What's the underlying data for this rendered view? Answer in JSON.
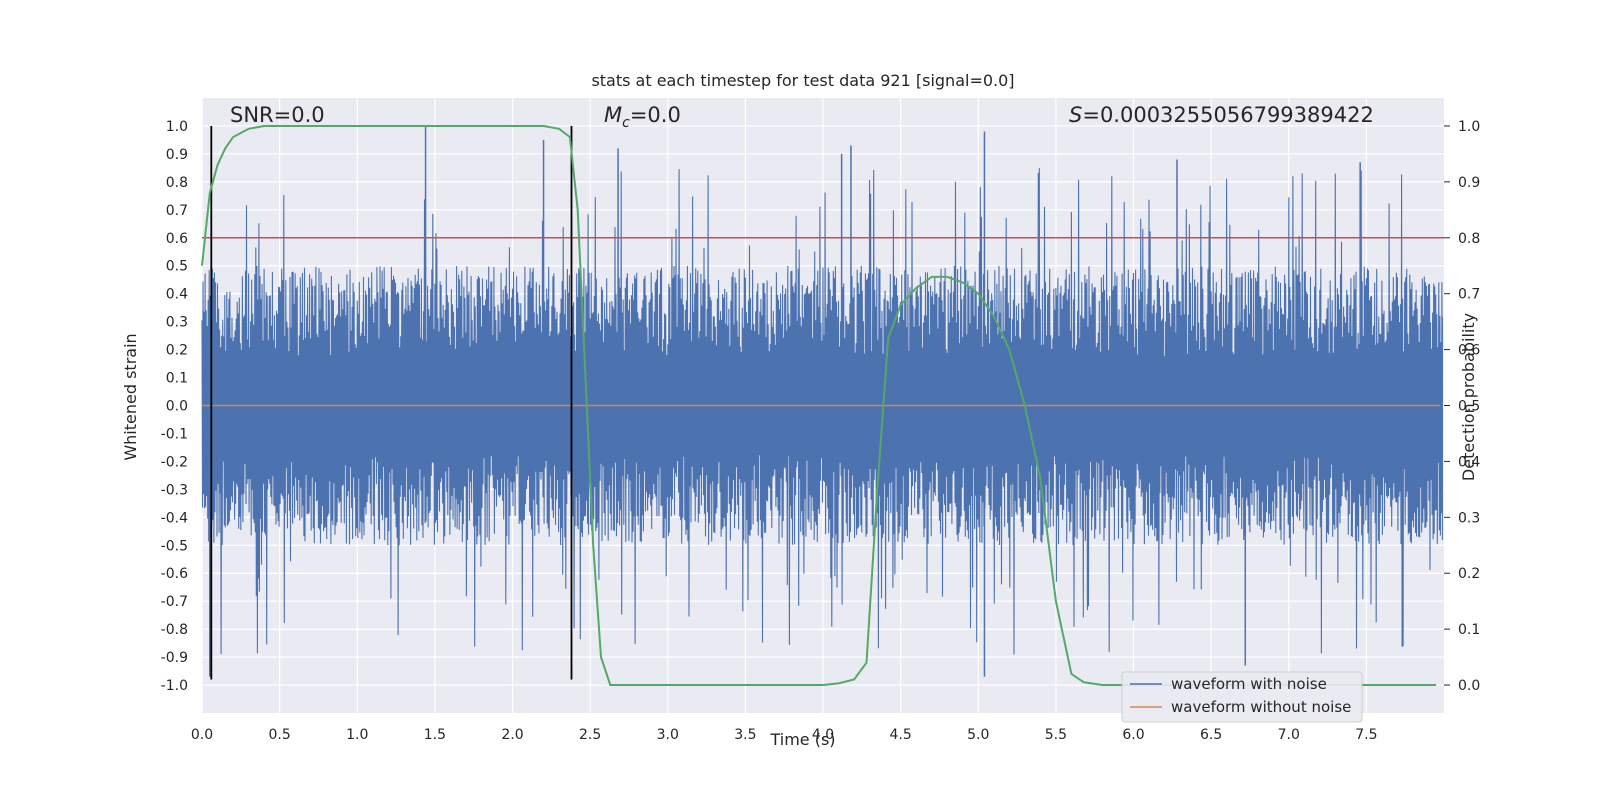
{
  "chart_data": {
    "type": "line",
    "title": "stats at each timestep for test data 921 [signal=0.0]",
    "xlabel": "Time (s)",
    "ylabel": "Whitened strain",
    "y2label": "Detection probability",
    "xlim": [
      0.0,
      8.0
    ],
    "ylim": [
      -1.1,
      1.1
    ],
    "y2lim": [
      -0.05,
      1.05
    ],
    "xticks": [
      0.0,
      0.5,
      1.0,
      1.5,
      2.0,
      2.5,
      3.0,
      3.5,
      4.0,
      4.5,
      5.0,
      5.5,
      6.0,
      6.5,
      7.0,
      7.5
    ],
    "xtick_labels": [
      "0.0",
      "0.5",
      "1.0",
      "1.5",
      "2.0",
      "2.5",
      "3.0",
      "3.5",
      "4.0",
      "4.5",
      "5.0",
      "5.5",
      "6.0",
      "6.5",
      "7.0",
      "7.5"
    ],
    "yticks": [
      1.0,
      0.9,
      0.8,
      0.7,
      0.6,
      0.5,
      0.4,
      0.3,
      0.2,
      0.1,
      0.0,
      -0.1,
      -0.2,
      -0.3,
      -0.4,
      -0.5,
      -0.6,
      -0.7,
      -0.8,
      -0.9,
      -1.0
    ],
    "ytick_labels": [
      "1.0",
      "0.9",
      "0.8",
      "0.7",
      "0.6",
      "0.5",
      "0.4",
      "0.3",
      "0.2",
      "0.1",
      "0.0",
      "-0.1",
      "-0.2",
      "-0.3",
      "-0.4",
      "-0.5",
      "-0.6",
      "-0.7",
      "-0.8",
      "-0.9",
      "-1.0"
    ],
    "y2ticks": [
      1.0,
      0.9,
      0.8,
      0.7,
      0.6,
      0.5,
      0.4,
      0.3,
      0.2,
      0.1,
      0.0
    ],
    "y2tick_labels": [
      "1.0",
      "0.9",
      "0.8",
      "0.7",
      "0.6",
      "0.5",
      "0.4",
      "0.3",
      "0.2",
      "0.1",
      "0.0"
    ],
    "grid": true,
    "legend_position": "bottom-right",
    "series": [
      {
        "name": "waveform with noise",
        "axis": "left",
        "color": "#4c72b0",
        "style": "dense noise, envelope approx",
        "duration_s": 8.0,
        "envelope_upper": 0.5,
        "envelope_lower": -0.5,
        "peaks": [
          {
            "x": 1.44,
            "y": 1.0
          },
          {
            "x": 2.2,
            "y": 0.95
          },
          {
            "x": 2.68,
            "y": 0.92
          },
          {
            "x": 4.18,
            "y": 0.93
          },
          {
            "x": 4.12,
            "y": 0.9
          },
          {
            "x": 5.04,
            "y": 0.98
          },
          {
            "x": 6.28,
            "y": 0.88
          },
          {
            "x": 7.46,
            "y": 0.87
          },
          {
            "x": 0.05,
            "y": -0.97
          },
          {
            "x": 5.04,
            "y": -0.97
          },
          {
            "x": 6.72,
            "y": -0.93
          }
        ]
      },
      {
        "name": "waveform without noise",
        "axis": "left",
        "color": "#dd8452",
        "x": [
          0.0,
          8.0
        ],
        "y": [
          0.0,
          0.0
        ]
      },
      {
        "name": "detection probability",
        "axis": "right",
        "color": "#55a868",
        "x": [
          0.0,
          0.05,
          0.1,
          0.15,
          0.2,
          0.3,
          0.4,
          0.5,
          1.0,
          1.5,
          2.0,
          2.2,
          2.3,
          2.37,
          2.42,
          2.47,
          2.52,
          2.57,
          2.63,
          2.75,
          3.0,
          3.5,
          4.0,
          4.1,
          4.2,
          4.28,
          4.35,
          4.42,
          4.5,
          4.6,
          4.7,
          4.8,
          4.9,
          5.0,
          5.1,
          5.2,
          5.3,
          5.4,
          5.5,
          5.6,
          5.68,
          5.8,
          6.0,
          7.0,
          7.95
        ],
        "y": [
          0.75,
          0.88,
          0.93,
          0.96,
          0.98,
          0.995,
          1.0,
          1.0,
          1.0,
          1.0,
          1.0,
          1.0,
          0.995,
          0.98,
          0.85,
          0.55,
          0.25,
          0.05,
          0.0,
          0.0,
          0.0,
          0.0,
          0.0,
          0.003,
          0.01,
          0.04,
          0.35,
          0.62,
          0.68,
          0.71,
          0.73,
          0.73,
          0.72,
          0.7,
          0.66,
          0.6,
          0.5,
          0.37,
          0.15,
          0.02,
          0.005,
          0.0,
          0.0,
          0.0,
          0.0
        ]
      }
    ],
    "reference_lines": {
      "threshold_y": 0.8,
      "threshold_color": "#c44e52",
      "vertical_x": [
        0.06,
        2.38
      ],
      "vertical_color": "#000000"
    },
    "annotations": {
      "snr": "SNR=0.0",
      "mc_symbol": "M",
      "mc_sub": "c",
      "mc_value": "=0.0",
      "s_symbol": "S",
      "s_value": "=0.0003255056799389422"
    }
  }
}
